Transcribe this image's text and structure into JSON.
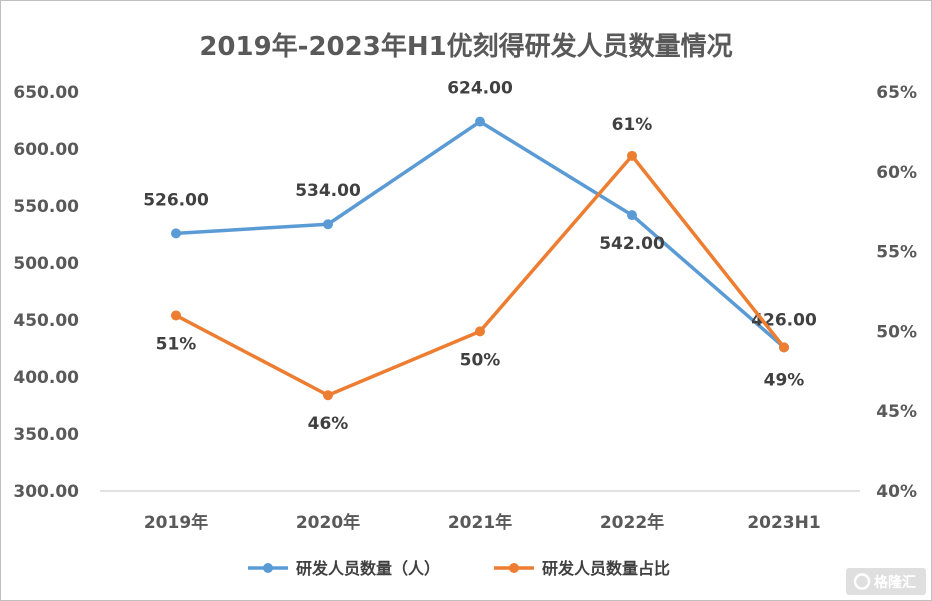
{
  "chart_data": {
    "type": "line",
    "title": "2019年-2023年H1优刻得研发人员数量情况",
    "categories": [
      "2019年",
      "2020年",
      "2021年",
      "2022年",
      "2023H1"
    ],
    "y_left": {
      "range": [
        300,
        650
      ],
      "ticks": [
        "300.00",
        "350.00",
        "400.00",
        "450.00",
        "500.00",
        "550.00",
        "600.00",
        "650.00"
      ]
    },
    "y_right": {
      "range": [
        40,
        65
      ],
      "ticks": [
        "40%",
        "45%",
        "50%",
        "55%",
        "60%",
        "65%"
      ]
    },
    "series": [
      {
        "name": "研发人员数量（人）",
        "axis": "left",
        "color": "#5b9bd5",
        "values": [
          526,
          534,
          624,
          542,
          426
        ],
        "labels": [
          "526.00",
          "534.00",
          "624.00",
          "542.00",
          "426.00"
        ]
      },
      {
        "name": "研发人员数量占比",
        "axis": "right",
        "color": "#ed7d31",
        "values": [
          51,
          46,
          50,
          61,
          49
        ],
        "labels": [
          "51%",
          "46%",
          "50%",
          "61%",
          "49%"
        ]
      }
    ],
    "grid": false,
    "legend_position": "bottom"
  },
  "watermark": {
    "text": "格隆汇",
    "icon": "ring-logo-icon"
  }
}
